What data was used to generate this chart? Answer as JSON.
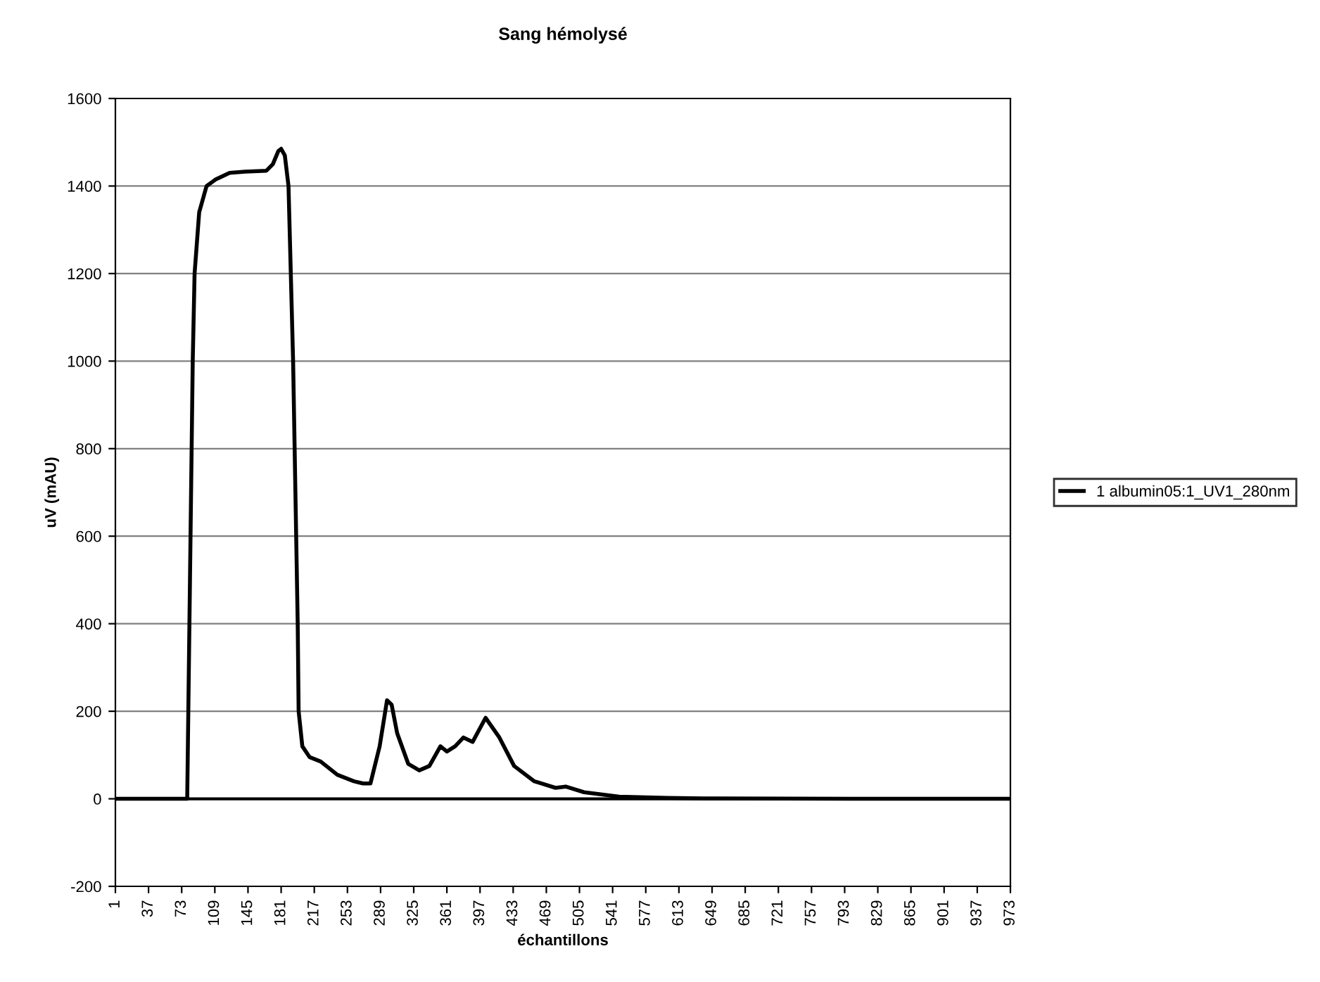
{
  "chart_data": {
    "type": "line",
    "title": "Sang hémolysé",
    "xlabel": "échantillons",
    "ylabel": "uV (mAU)",
    "x": [
      1,
      40,
      79,
      82,
      85,
      87,
      92,
      100,
      110,
      125,
      142,
      165,
      172,
      178,
      181,
      185,
      189,
      194,
      199,
      200,
      204,
      212,
      224,
      242,
      260,
      270,
      278,
      288,
      296,
      301,
      307,
      319,
      331,
      342,
      354,
      361,
      370,
      379,
      389,
      403,
      418,
      434,
      456,
      479,
      490,
      510,
      548,
      600,
      640,
      800,
      973
    ],
    "series": [
      {
        "name": "1 albumin05:1_UV1_280nm",
        "color": "#000000",
        "values": [
          0,
          0,
          0,
          500,
          1000,
          1200,
          1340,
          1400,
          1415,
          1430,
          1433,
          1435,
          1450,
          1480,
          1485,
          1470,
          1400,
          1000,
          400,
          200,
          120,
          95,
          85,
          55,
          40,
          35,
          35,
          120,
          225,
          215,
          150,
          80,
          65,
          75,
          120,
          108,
          120,
          140,
          130,
          185,
          140,
          75,
          40,
          25,
          28,
          15,
          5,
          2,
          1,
          0,
          0
        ]
      }
    ],
    "xlim": [
      1,
      973
    ],
    "xticks": [
      1,
      37,
      73,
      109,
      145,
      181,
      217,
      253,
      289,
      325,
      361,
      397,
      433,
      469,
      505,
      541,
      577,
      613,
      649,
      685,
      721,
      757,
      793,
      829,
      865,
      901,
      937,
      973
    ],
    "ylim": [
      -200,
      1600
    ],
    "yticks": [
      -200,
      0,
      200,
      400,
      600,
      800,
      1000,
      1200,
      1400,
      1600
    ],
    "grid": "y",
    "legend": "right",
    "marker": "none",
    "line_style": "solid"
  }
}
